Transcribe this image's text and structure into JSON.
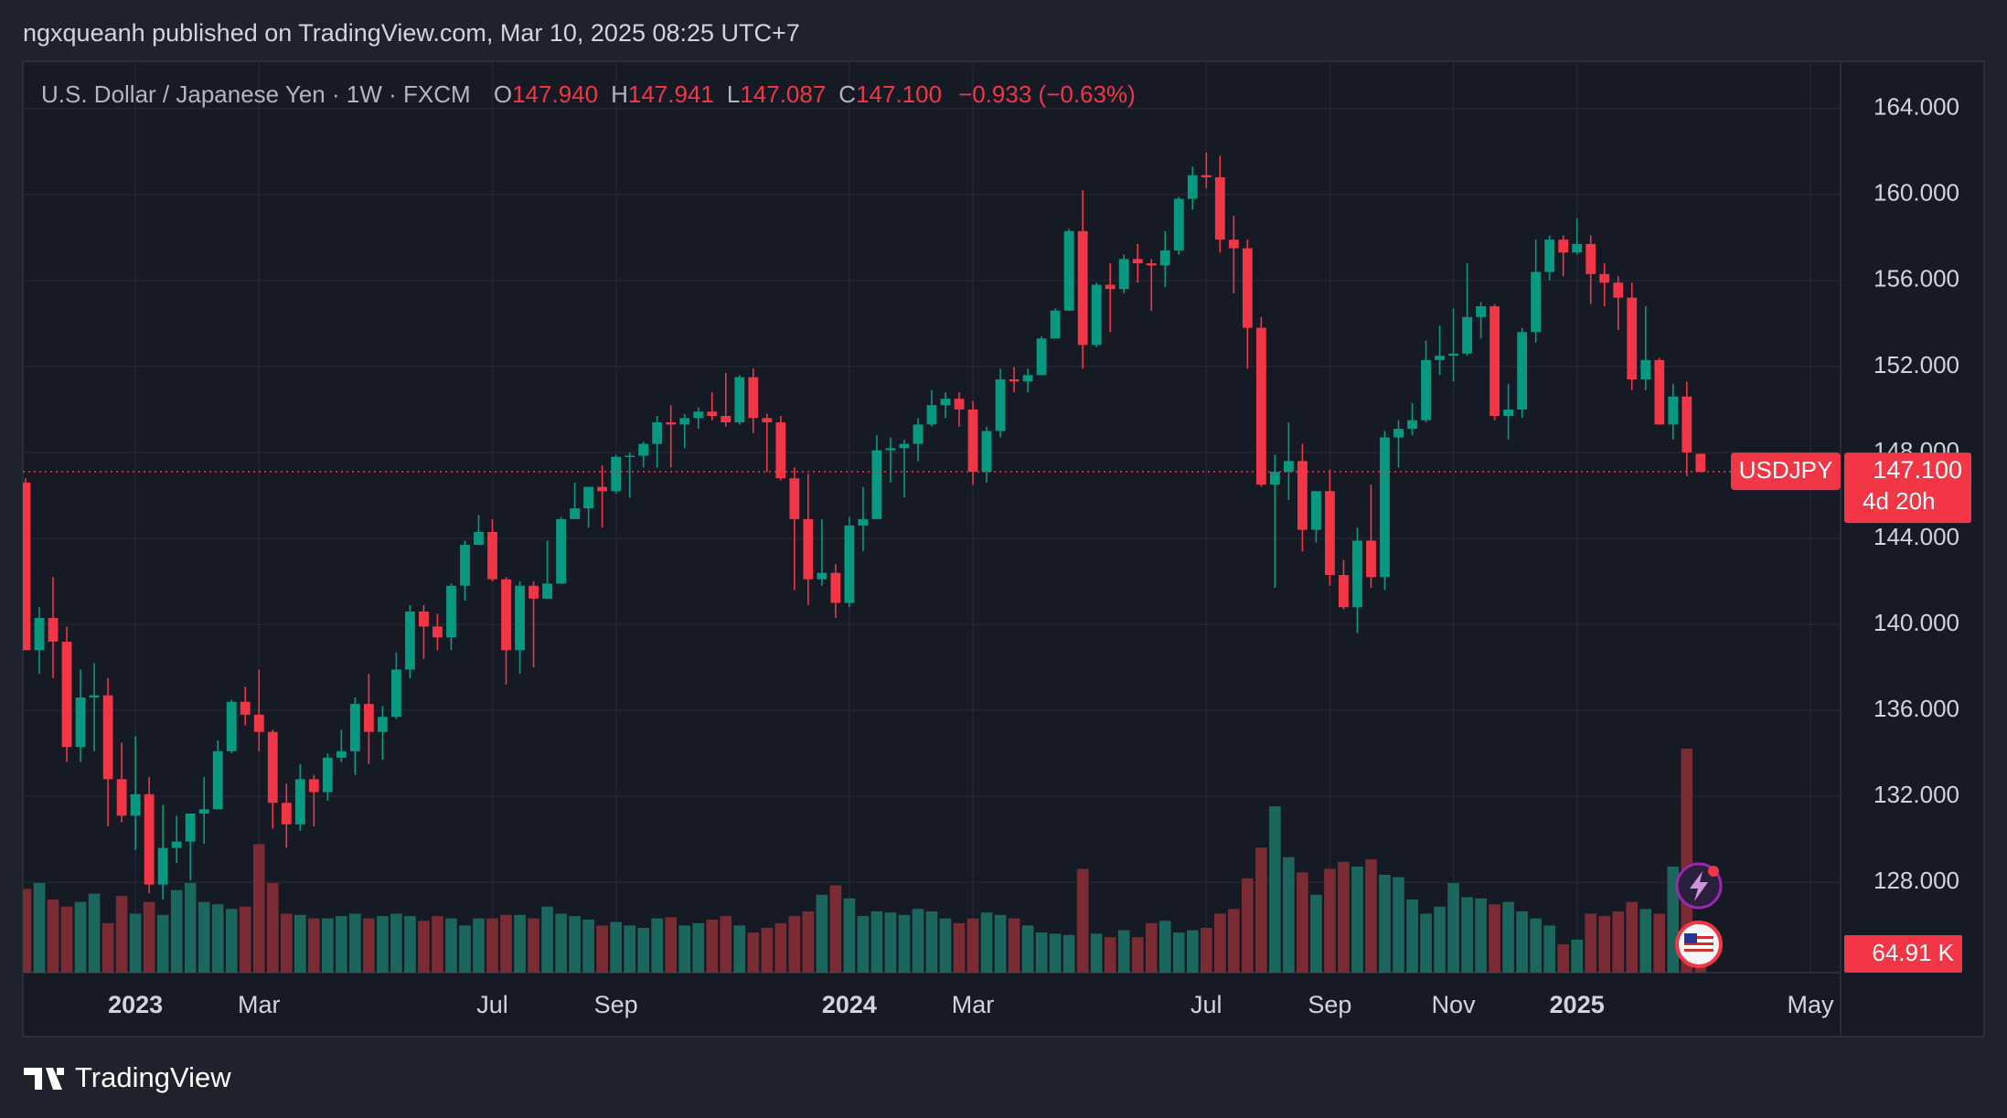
{
  "header": {
    "published": "ngxqueanh published on TradingView.com, Mar 10, 2025 08:25 UTC+7",
    "brand": "TradingView"
  },
  "chart_data": {
    "type": "candlestick",
    "legend": {
      "title": "U.S. Dollar / Japanese Yen · 1W · FXCM",
      "fields": [
        {
          "key": "O",
          "value": "147.940"
        },
        {
          "key": "H",
          "value": "147.941"
        },
        {
          "key": "L",
          "value": "147.087"
        },
        {
          "key": "C",
          "value": "147.100"
        }
      ],
      "change": "−0.933 (−0.63%)"
    },
    "symbol_tag": "USDJPY",
    "last_price_label": "147.100",
    "countdown": "4d 20h",
    "volume_tag": "64.91 K",
    "up_color": "#089981",
    "down_color": "#f23645",
    "volume_up_color": "#1b675e",
    "volume_down_color": "#7b2b33",
    "open": [
      146.6,
      138.8,
      140.3,
      139.2,
      134.3,
      136.6,
      136.7,
      132.8,
      131.1,
      132.1,
      127.9,
      129.6,
      129.9,
      131.2,
      131.4,
      134.1,
      136.4,
      135.8,
      135.0,
      131.7,
      130.7,
      132.8,
      132.2,
      133.8,
      134.1,
      136.3,
      135.0,
      135.7,
      137.9,
      140.6,
      139.9,
      139.4,
      141.8,
      143.7,
      144.3,
      142.1,
      138.8,
      141.8,
      141.2,
      141.9,
      144.9,
      145.4,
      146.4,
      146.2,
      147.8,
      147.85,
      148.4,
      149.4,
      149.3,
      149.6,
      149.9,
      149.7,
      149.4,
      151.5,
      149.6,
      149.4,
      146.8,
      144.9,
      142.1,
      142.4,
      141.0,
      144.6,
      144.9,
      148.1,
      148.2,
      148.4,
      149.3,
      150.2,
      150.5,
      150.0,
      147.1,
      149.0,
      151.4,
      151.3,
      151.6,
      153.3,
      154.6,
      158.3,
      153.0,
      155.8,
      155.6,
      157.0,
      156.8,
      156.7,
      157.4,
      159.8,
      160.9,
      160.8,
      157.9,
      157.5,
      153.8,
      146.5,
      147.1,
      147.6,
      144.4,
      146.2,
      142.3,
      140.8,
      143.9,
      142.2,
      148.7,
      149.1,
      149.5,
      152.3,
      152.5,
      152.6,
      154.3,
      154.8,
      149.7,
      150.0,
      153.6,
      156.4,
      157.9,
      157.3,
      157.7,
      156.3,
      155.9,
      155.2,
      151.4,
      152.3,
      149.3,
      150.6,
      147.94
    ],
    "high": [
      146.8,
      140.8,
      142.2,
      139.9,
      137.9,
      138.2,
      137.5,
      134.5,
      134.8,
      132.9,
      131.6,
      131.1,
      131.2,
      132.9,
      134.6,
      136.5,
      137.1,
      137.9,
      135.1,
      132.6,
      133.5,
      133.0,
      134.0,
      135.1,
      136.6,
      137.7,
      136.2,
      138.7,
      140.9,
      140.9,
      140.5,
      141.9,
      143.9,
      145.1,
      144.9,
      142.2,
      142.0,
      142.0,
      143.9,
      145.0,
      146.6,
      146.4,
      147.4,
      147.9,
      148.0,
      148.5,
      149.7,
      150.2,
      149.8,
      150.1,
      150.8,
      151.7,
      151.6,
      151.9,
      149.8,
      149.7,
      147.3,
      147.0,
      144.9,
      142.8,
      145.0,
      146.4,
      148.8,
      148.7,
      148.6,
      149.6,
      150.9,
      150.8,
      150.8,
      150.4,
      149.2,
      151.9,
      151.97,
      151.9,
      153.4,
      154.7,
      158.4,
      160.2,
      155.9,
      156.8,
      157.2,
      157.7,
      157.0,
      158.3,
      159.9,
      161.3,
      161.95,
      161.8,
      159.0,
      157.9,
      154.3,
      147.9,
      149.4,
      148.4,
      146.2,
      147.2,
      143.0,
      144.5,
      146.5,
      149.0,
      149.5,
      150.3,
      153.2,
      153.9,
      154.7,
      156.8,
      155.0,
      154.9,
      151.2,
      153.8,
      157.9,
      158.1,
      158.1,
      158.9,
      158.1,
      156.8,
      156.2,
      155.9,
      154.8,
      152.4,
      151.2,
      151.3,
      147.941
    ],
    "low": [
      138.8,
      137.7,
      137.5,
      133.6,
      133.6,
      134.1,
      130.6,
      130.8,
      129.5,
      127.5,
      127.2,
      128.9,
      128.1,
      129.8,
      131.4,
      134.0,
      135.3,
      134.1,
      130.5,
      129.6,
      130.4,
      130.6,
      131.8,
      133.6,
      133.0,
      133.5,
      133.7,
      135.6,
      137.5,
      138.4,
      138.8,
      138.8,
      141.1,
      143.7,
      142.0,
      137.2,
      137.7,
      138.0,
      141.2,
      141.9,
      144.9,
      144.5,
      144.5,
      146.1,
      145.9,
      147.3,
      147.3,
      147.3,
      148.2,
      149.1,
      149.5,
      149.2,
      149.3,
      148.9,
      147.1,
      146.7,
      141.6,
      140.9,
      141.8,
      140.3,
      140.8,
      143.4,
      144.9,
      146.6,
      145.9,
      147.6,
      149.2,
      149.6,
      149.2,
      146.5,
      146.6,
      148.7,
      150.8,
      150.8,
      151.6,
      153.3,
      154.6,
      151.9,
      152.9,
      153.6,
      155.4,
      155.9,
      154.6,
      155.7,
      157.2,
      159.3,
      160.3,
      157.3,
      155.4,
      151.9,
      146.4,
      141.7,
      145.8,
      143.4,
      143.8,
      141.8,
      140.7,
      139.6,
      141.7,
      141.6,
      147.3,
      148.8,
      149.4,
      151.6,
      151.3,
      152.5,
      153.3,
      149.5,
      148.6,
      149.6,
      153.1,
      156.0,
      156.2,
      157.2,
      154.9,
      154.8,
      153.7,
      150.9,
      150.9,
      149.3,
      148.6,
      146.9,
      147.087
    ],
    "close": [
      138.8,
      140.3,
      139.2,
      134.3,
      136.6,
      136.7,
      132.8,
      131.1,
      132.1,
      127.9,
      129.6,
      129.9,
      131.2,
      131.4,
      134.1,
      136.4,
      135.8,
      135.0,
      131.7,
      130.7,
      132.8,
      132.2,
      133.8,
      134.1,
      136.3,
      135.0,
      135.7,
      137.9,
      140.6,
      139.9,
      139.4,
      141.8,
      143.7,
      144.3,
      142.1,
      138.8,
      141.8,
      141.2,
      141.9,
      144.9,
      145.4,
      146.4,
      146.2,
      147.8,
      147.85,
      148.4,
      149.4,
      149.3,
      149.6,
      149.9,
      149.7,
      149.4,
      151.5,
      149.6,
      149.4,
      146.8,
      144.9,
      142.1,
      142.4,
      141.0,
      144.6,
      144.9,
      148.1,
      148.2,
      148.4,
      149.3,
      150.2,
      150.5,
      150.0,
      147.1,
      149.0,
      151.4,
      151.3,
      151.6,
      153.3,
      154.6,
      158.3,
      153.0,
      155.8,
      155.6,
      157.0,
      156.8,
      156.7,
      157.4,
      159.8,
      160.9,
      160.8,
      157.9,
      157.5,
      153.8,
      146.5,
      147.1,
      147.6,
      144.4,
      146.2,
      142.3,
      140.8,
      143.9,
      142.2,
      148.7,
      149.1,
      149.5,
      152.3,
      152.5,
      152.6,
      154.3,
      154.8,
      149.7,
      150.0,
      153.6,
      156.4,
      157.9,
      157.3,
      157.7,
      156.3,
      155.9,
      155.2,
      151.4,
      152.3,
      149.3,
      150.6,
      148.0,
      147.1
    ],
    "volume": [
      355,
      380,
      310,
      280,
      300,
      335,
      210,
      325,
      250,
      300,
      245,
      350,
      380,
      300,
      290,
      270,
      280,
      545,
      380,
      250,
      245,
      230,
      230,
      240,
      250,
      230,
      240,
      250,
      240,
      220,
      240,
      230,
      200,
      230,
      230,
      245,
      245,
      230,
      280,
      250,
      240,
      225,
      200,
      215,
      200,
      190,
      230,
      235,
      200,
      210,
      225,
      240,
      200,
      170,
      190,
      210,
      240,
      260,
      330,
      370,
      315,
      240,
      260,
      255,
      245,
      270,
      260,
      230,
      210,
      230,
      255,
      245,
      230,
      200,
      170,
      165,
      160,
      440,
      165,
      150,
      180,
      150,
      210,
      220,
      170,
      180,
      190,
      250,
      270,
      400,
      530,
      705,
      490,
      425,
      330,
      440,
      470,
      450,
      480,
      415,
      405,
      310,
      250,
      280,
      380,
      320,
      315,
      290,
      300,
      260,
      230,
      200,
      120,
      140,
      250,
      240,
      260,
      300,
      270,
      250,
      450,
      950,
      64.91
    ],
    "ylim": [
      123.8,
      166.2
    ],
    "vlim": [
      0,
      1000
    ],
    "xlim": [
      -0.2,
      132.2
    ],
    "yticks": [
      {
        "value": 128,
        "label": "128.000"
      },
      {
        "value": 132,
        "label": "132.000"
      },
      {
        "value": 136,
        "label": "136.000"
      },
      {
        "value": 140,
        "label": "140.000"
      },
      {
        "value": 144,
        "label": "144.000"
      },
      {
        "value": 148,
        "label": "148.000"
      },
      {
        "value": 152,
        "label": "152.000"
      },
      {
        "value": 156,
        "label": "156.000"
      },
      {
        "value": 160,
        "label": "160.000"
      },
      {
        "value": 164,
        "label": "164.000"
      }
    ],
    "xticks": [
      {
        "value": 8,
        "label": "2023"
      },
      {
        "value": 17,
        "label": "Mar"
      },
      {
        "value": 34,
        "label": "Jul"
      },
      {
        "value": 43,
        "label": "Sep"
      },
      {
        "value": 60,
        "label": "2024"
      },
      {
        "value": 69,
        "label": "Mar"
      },
      {
        "value": 86,
        "label": "Jul"
      },
      {
        "value": 95,
        "label": "Sep"
      },
      {
        "value": 104,
        "label": "Nov"
      },
      {
        "value": 113,
        "label": "2025"
      },
      {
        "value": 130,
        "label": "May"
      }
    ],
    "grid": true
  }
}
